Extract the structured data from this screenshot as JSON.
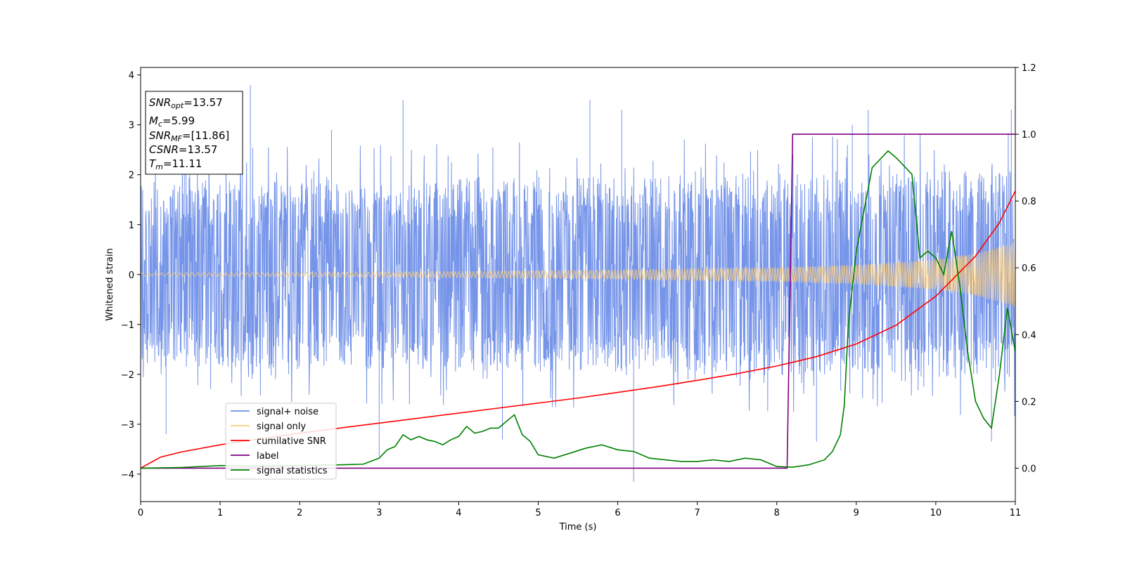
{
  "chart_data": {
    "type": "line",
    "xlabel": "Time (s)",
    "ylabel": "Whitened strain",
    "xlim": [
      0,
      11
    ],
    "ylim": [
      -4.55,
      4.15
    ],
    "y2lim": [
      -0.1,
      1.2
    ],
    "x_ticks": [
      0,
      1,
      2,
      3,
      4,
      5,
      6,
      7,
      8,
      9,
      10,
      11
    ],
    "x_tick_labels": [
      "0",
      "1",
      "2",
      "3",
      "4",
      "5",
      "6",
      "7",
      "8",
      "9",
      "10",
      "11"
    ],
    "y_ticks": [
      -4,
      -3,
      -2,
      -1,
      0,
      1,
      2,
      3,
      4
    ],
    "y_tick_labels": [
      "−4",
      "−3",
      "−2",
      "−1",
      "0",
      "1",
      "2",
      "3",
      "4"
    ],
    "y2_ticks": [
      0.0,
      0.2,
      0.4,
      0.6,
      0.8,
      1.0,
      1.2
    ],
    "y2_tick_labels": [
      "0.0",
      "0.2",
      "0.4",
      "0.6",
      "0.8",
      "1.0",
      "1.2"
    ],
    "grid": false,
    "legend_placement": "lower-left",
    "legend": [
      {
        "label": "signal+ noise",
        "color": "#6f8fe8"
      },
      {
        "label": "signal only",
        "color": "#ffcf7a"
      },
      {
        "label": "cumilative SNR",
        "color": "#ff0000"
      },
      {
        "label": "label",
        "color": "#800080"
      },
      {
        "label": "signal statistics",
        "color": "#008000"
      }
    ],
    "annotations": [
      {
        "name": "SNR",
        "sub": "opt",
        "value": "=13.57"
      },
      {
        "name": "M",
        "sub": "c",
        "value": "=5.99"
      },
      {
        "name": "SNR",
        "sub": "MF",
        "value": "=[11.86]"
      },
      {
        "name": "CSNR",
        "sub": "",
        "value": "=13.57"
      },
      {
        "name": "T",
        "sub": "m",
        "value": "=11.11"
      }
    ],
    "series": [
      {
        "name": "signal+ noise",
        "axis": "left",
        "color": "#6f8fe8",
        "style": "noise-band",
        "band_sigma": 1.0,
        "band_envelope": {
          "x": [
            0,
            11
          ],
          "y": [
            1.85,
            2.1
          ]
        },
        "peaks": [
          {
            "x": 0.55,
            "y": 3.0
          },
          {
            "x": 1.28,
            "y": 3.4
          },
          {
            "x": 1.38,
            "y": 3.8
          },
          {
            "x": 2.4,
            "y": 2.9
          },
          {
            "x": 3.3,
            "y": 3.5
          },
          {
            "x": 5.65,
            "y": 3.5
          },
          {
            "x": 6.05,
            "y": 3.3
          },
          {
            "x": 8.95,
            "y": 3.0
          },
          {
            "x": 9.15,
            "y": 3.3
          },
          {
            "x": 10.95,
            "y": 3.3
          }
        ],
        "troughs": [
          {
            "x": 0.32,
            "y": -3.2
          },
          {
            "x": 3.0,
            "y": -3.65
          },
          {
            "x": 4.55,
            "y": -3.3
          },
          {
            "x": 6.2,
            "y": -4.15
          },
          {
            "x": 8.5,
            "y": -3.35
          },
          {
            "x": 10.7,
            "y": -3.35
          }
        ]
      },
      {
        "name": "signal only",
        "axis": "left",
        "color": "#ffcf7a",
        "style": "chirp",
        "envelope": {
          "x": [
            0,
            2,
            4,
            6,
            8,
            9,
            10,
            10.5,
            11
          ],
          "y": [
            0.03,
            0.04,
            0.06,
            0.09,
            0.14,
            0.19,
            0.3,
            0.42,
            0.65
          ]
        }
      },
      {
        "name": "cumilative SNR",
        "axis": "right",
        "color": "#ff0000",
        "x": [
          0,
          0.25,
          0.5,
          1,
          1.5,
          2,
          2.5,
          3,
          3.5,
          4,
          4.5,
          5,
          5.5,
          6,
          6.5,
          7,
          7.5,
          8,
          8.5,
          9,
          9.5,
          10,
          10.5,
          10.8,
          11
        ],
        "y": [
          0.0,
          0.033,
          0.048,
          0.07,
          0.088,
          0.105,
          0.12,
          0.135,
          0.15,
          0.165,
          0.18,
          0.195,
          0.21,
          0.227,
          0.244,
          0.263,
          0.283,
          0.306,
          0.334,
          0.372,
          0.428,
          0.515,
          0.635,
          0.735,
          0.83
        ]
      },
      {
        "name": "label",
        "axis": "right",
        "color": "#800080",
        "x": [
          0,
          8.13,
          8.2,
          11
        ],
        "y": [
          0.0,
          0.0,
          1.0,
          1.0
        ]
      },
      {
        "name": "signal statistics",
        "axis": "right",
        "color": "#008000",
        "x": [
          0,
          0.5,
          1,
          1.5,
          2,
          2.5,
          2.8,
          3.0,
          3.1,
          3.2,
          3.3,
          3.4,
          3.5,
          3.6,
          3.7,
          3.8,
          3.9,
          4.0,
          4.1,
          4.2,
          4.3,
          4.4,
          4.5,
          4.6,
          4.7,
          4.8,
          4.9,
          5.0,
          5.2,
          5.4,
          5.6,
          5.8,
          6.0,
          6.2,
          6.4,
          6.6,
          6.8,
          7.0,
          7.2,
          7.4,
          7.6,
          7.8,
          8.0,
          8.2,
          8.4,
          8.6,
          8.7,
          8.8,
          8.85,
          8.9,
          9.0,
          9.2,
          9.4,
          9.5,
          9.7,
          9.8,
          9.9,
          10.0,
          10.1,
          10.2,
          10.3,
          10.4,
          10.5,
          10.6,
          10.7,
          10.8,
          10.9,
          11.0
        ],
        "y": [
          0.0,
          0.002,
          0.008,
          0.006,
          0.008,
          0.01,
          0.012,
          0.03,
          0.055,
          0.065,
          0.1,
          0.085,
          0.095,
          0.085,
          0.08,
          0.07,
          0.085,
          0.095,
          0.125,
          0.105,
          0.11,
          0.12,
          0.12,
          0.14,
          0.16,
          0.1,
          0.08,
          0.04,
          0.03,
          0.045,
          0.06,
          0.07,
          0.055,
          0.05,
          0.03,
          0.025,
          0.02,
          0.02,
          0.025,
          0.02,
          0.03,
          0.025,
          0.005,
          0.003,
          0.01,
          0.025,
          0.05,
          0.1,
          0.19,
          0.43,
          0.65,
          0.9,
          0.95,
          0.93,
          0.88,
          0.63,
          0.65,
          0.63,
          0.58,
          0.71,
          0.55,
          0.35,
          0.2,
          0.15,
          0.12,
          0.28,
          0.48,
          0.35
        ]
      }
    ]
  }
}
